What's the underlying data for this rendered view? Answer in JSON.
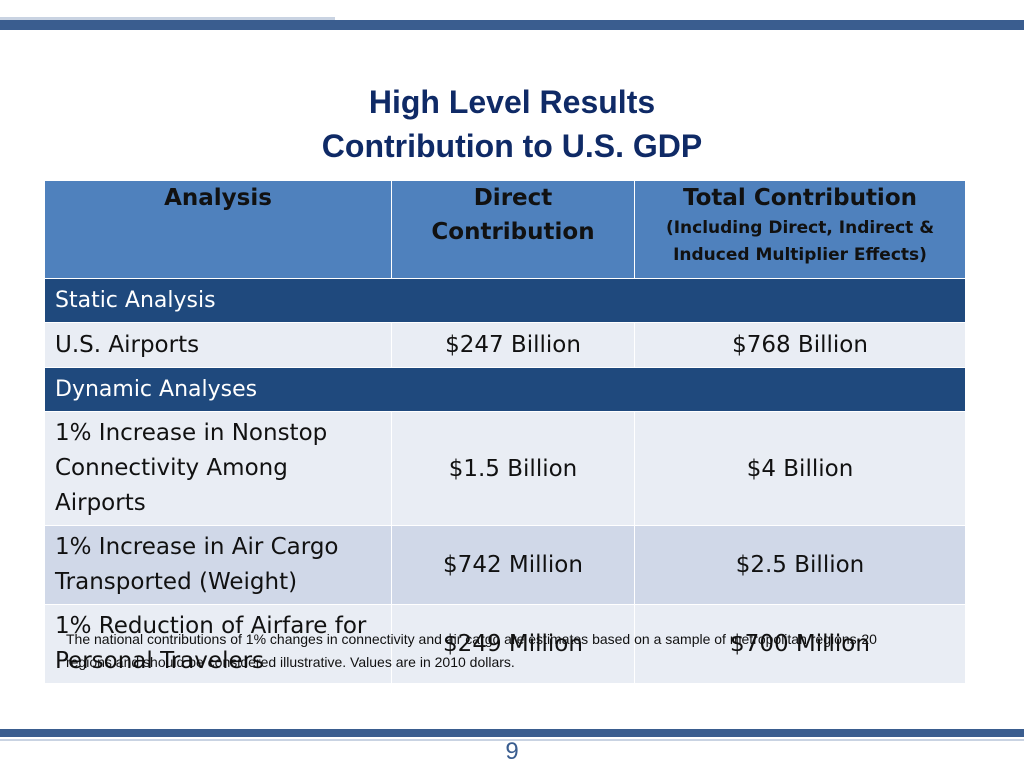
{
  "title": {
    "line1": "High Level Results",
    "line2": "Contribution to U.S. GDP"
  },
  "table": {
    "headers": {
      "analysis": "Analysis",
      "direct": "Direct Contribution",
      "total": "Total Contribution",
      "total_sub": "(Including Direct, Indirect & Induced Multiplier Effects)"
    },
    "sections": [
      {
        "label": "Static Analysis",
        "rows": [
          {
            "analysis": "U.S. Airports",
            "direct": "$247 Billion",
            "total": "$768 Billion"
          }
        ]
      },
      {
        "label": "Dynamic Analyses",
        "rows": [
          {
            "analysis": "1% Increase in Nonstop Connectivity Among Airports",
            "direct": "$1.5 Billion",
            "total": "$4 Billion"
          },
          {
            "analysis": "1% Increase in Air Cargo Transported (Weight)",
            "direct": "$742 Million",
            "total": "$2.5 Billion"
          },
          {
            "analysis": "1% Reduction of Airfare for Personal Travelers",
            "direct": "$249 Million",
            "total": "$700 Million"
          }
        ]
      }
    ]
  },
  "footnote": "The national contributions of 1% changes in connectivity and air cargo are estimates based on a sample of metropolitan regions-20 regions and should be considered illustrative. Values are in 2010 dollars.",
  "page_number": "9",
  "colors": {
    "title": "#0f2a66",
    "header_bg": "#4f81bd",
    "section_bg": "#1f497d",
    "row_light": "#e9edf4",
    "row_mid": "#d0d8e8",
    "bar": "#3a5d8f"
  }
}
